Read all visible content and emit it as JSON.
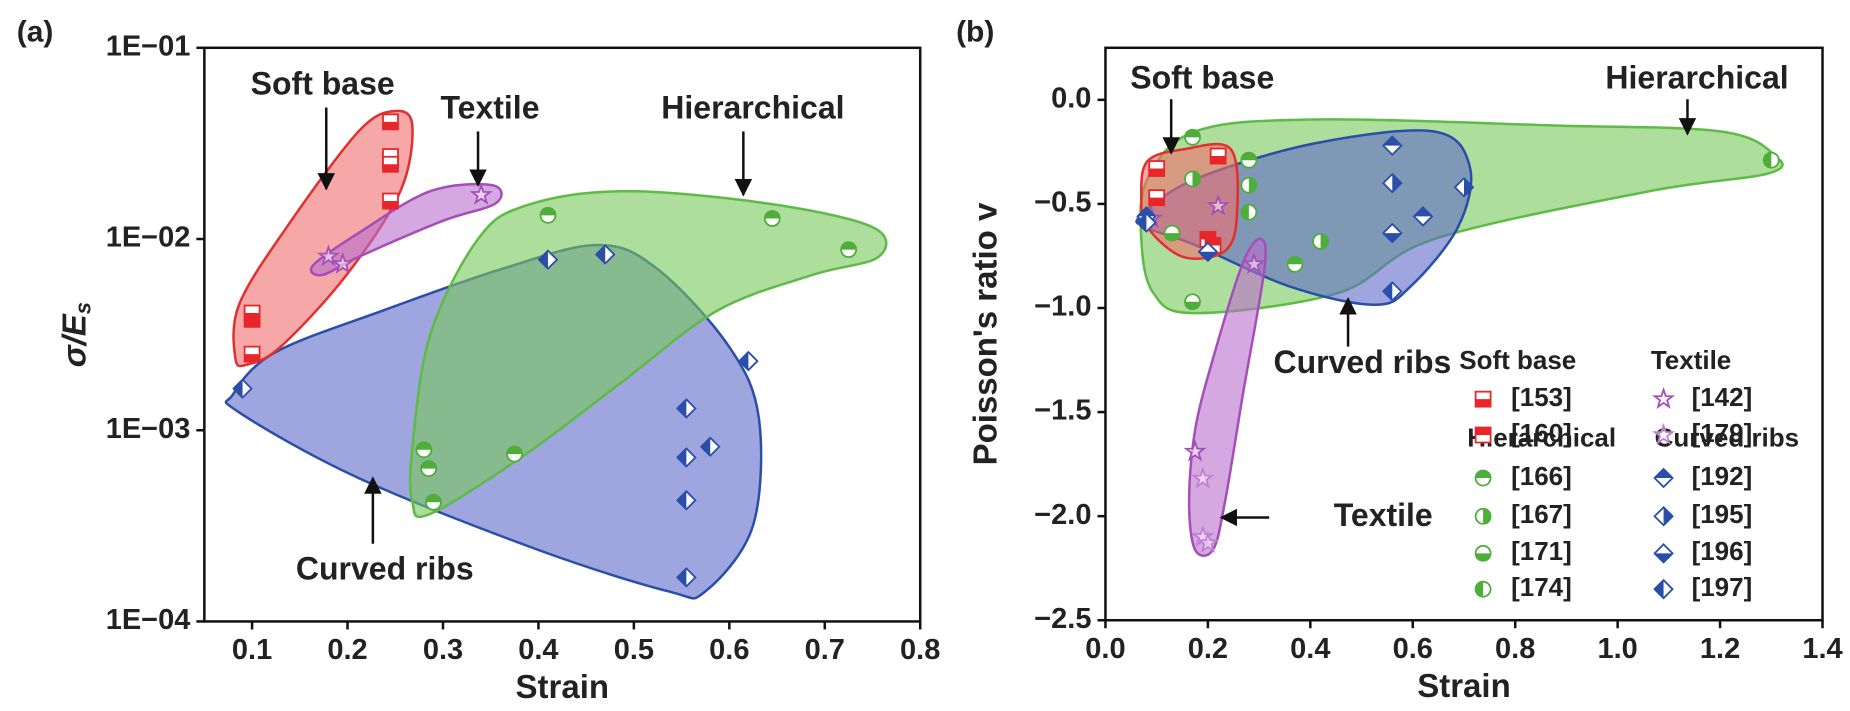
{
  "chart_data": [
    {
      "type": "scatter",
      "panel_label": "(a)",
      "xlabel": "Strain",
      "ylabel": "σ/E",
      "ylabel_sub": "s",
      "xlim": [
        0.05,
        0.8
      ],
      "xticks": [
        0.1,
        0.2,
        0.3,
        0.4,
        0.5,
        0.6,
        0.7,
        0.8
      ],
      "yscale": "log",
      "ylim": [
        0.0001,
        0.1
      ],
      "yticks": [
        {
          "value": 0.0001,
          "label": "1E−04"
        },
        {
          "value": 0.001,
          "label": "1E−03"
        },
        {
          "value": 0.01,
          "label": "1E−02"
        },
        {
          "value": 0.1,
          "label": "1E−01"
        }
      ],
      "annotations": [
        "Soft base",
        "Textile",
        "Hierarchical",
        "Curved ribs"
      ],
      "series": [
        {
          "color": "#e8262a",
          "marker": "square",
          "fill": "bottom",
          "x": [
            0.1,
            0.1,
            0.1,
            0.245,
            0.245,
            0.245,
            0.245
          ],
          "values": [
            0.0025,
            0.0038,
            0.0041,
            0.041,
            0.027,
            0.0246,
            0.0158
          ]
        },
        {
          "color": "#a44fb8",
          "marker": "star",
          "fill": "none",
          "x": [
            0.18,
            0.195,
            0.34
          ],
          "values": [
            0.0081,
            0.0074,
            0.017
          ]
        },
        {
          "color": "#4fae3a",
          "marker": "circle",
          "fill": "top",
          "x": [
            0.28,
            0.285,
            0.29,
            0.375,
            0.41,
            0.645,
            0.725
          ],
          "values": [
            0.00079,
            0.00063,
            0.00042,
            0.00075,
            0.0133,
            0.0128,
            0.0088
          ]
        },
        {
          "color": "#2a4fa8",
          "marker": "diamond",
          "fill": "left",
          "x": [
            0.09,
            0.41,
            0.47,
            0.555,
            0.555,
            0.58,
            0.555,
            0.555,
            0.62
          ],
          "values": [
            0.00165,
            0.0078,
            0.0083,
            0.0013,
            0.00072,
            0.00082,
            0.00043,
            0.00017,
            0.0023
          ]
        }
      ]
    },
    {
      "type": "scatter",
      "panel_label": "(b)",
      "xlabel": "Strain",
      "ylabel": "Poisson's ratio v",
      "xlim": [
        0,
        1.4
      ],
      "xticks": [
        {
          "value": 0,
          "label": "0.0"
        },
        0.2,
        0.4,
        0.6,
        0.8,
        {
          "value": 1,
          "label": "1.0"
        },
        1.2,
        1.4
      ],
      "ylim": [
        -2.5,
        0.25
      ],
      "yticks": [
        {
          "value": -2.5,
          "label": "−2.5"
        },
        {
          "value": -2,
          "label": "−2.0"
        },
        {
          "value": -1.5,
          "label": "−1.5"
        },
        {
          "value": -1,
          "label": "−1.0"
        },
        {
          "value": -0.5,
          "label": "−0.5"
        },
        {
          "value": 0,
          "label": "0.0"
        }
      ],
      "annotations": [
        "Soft base",
        "Hierarchical",
        "Curved ribs",
        "Textile"
      ],
      "legend_titles": [
        "Soft base",
        "Textile",
        "Hierarchical",
        "Curved ribs"
      ],
      "series": [
        {
          "name": "[153]",
          "color": "#e8262a",
          "marker": "square",
          "fill": "bottom",
          "x": [
            0.1,
            0.1,
            0.22
          ],
          "values": [
            -0.33,
            -0.47,
            -0.27
          ]
        },
        {
          "name": "[160]",
          "color": "#e8262a",
          "marker": "square",
          "fill": "top",
          "x": [
            0.2,
            0.21
          ],
          "values": [
            -0.67,
            -0.7
          ]
        },
        {
          "name": "[142]",
          "color": "#a44fb8",
          "marker": "star",
          "fill": "none",
          "x": [
            0.09,
            0.22,
            0.29,
            0.175
          ],
          "values": [
            -0.57,
            -0.51,
            -0.79,
            -1.69
          ]
        },
        {
          "name": "[179]",
          "color": "#c27fd0",
          "marker": "star",
          "fill": "none",
          "x": [
            0.19,
            0.19,
            0.2
          ],
          "values": [
            -1.82,
            -2.1,
            -2.13
          ]
        },
        {
          "name": "[166]",
          "color": "#4fae3a",
          "marker": "circle",
          "fill": "top",
          "x": [
            0.17,
            0.28,
            0.37
          ],
          "values": [
            -0.18,
            -0.29,
            -0.79
          ]
        },
        {
          "name": "[167]",
          "color": "#4fae3a",
          "marker": "circle",
          "fill": "right",
          "x": [
            0.17,
            0.28,
            0.42
          ],
          "values": [
            -0.38,
            -0.41,
            -0.68
          ]
        },
        {
          "name": "[171]",
          "color": "#4fae3a",
          "marker": "circle",
          "fill": "bottom",
          "x": [
            0.13,
            0.17
          ],
          "values": [
            -0.64,
            -0.97
          ]
        },
        {
          "name": "[174]",
          "color": "#4fae3a",
          "marker": "circle",
          "fill": "left",
          "x": [
            0.28,
            1.3
          ],
          "values": [
            -0.54,
            -0.29
          ]
        },
        {
          "name": "[192]",
          "color": "#2a4fa8",
          "marker": "diamond",
          "fill": "top",
          "x": [
            0.08,
            0.56,
            0.62
          ],
          "values": [
            -0.56,
            -0.22,
            -0.56
          ]
        },
        {
          "name": "[195]",
          "color": "#2a4fa8",
          "marker": "diamond",
          "fill": "right",
          "x": [
            0.56,
            0.7
          ],
          "values": [
            -0.4,
            -0.42
          ]
        },
        {
          "name": "[196]",
          "color": "#2a4fa8",
          "marker": "diamond",
          "fill": "bottom",
          "x": [
            0.2,
            0.56
          ],
          "values": [
            -0.73,
            -0.64
          ]
        },
        {
          "name": "[197]",
          "color": "#2a4fa8",
          "marker": "diamond",
          "fill": "left",
          "x": [
            0.08,
            0.56
          ],
          "values": [
            -0.59,
            -0.92
          ]
        }
      ]
    }
  ]
}
